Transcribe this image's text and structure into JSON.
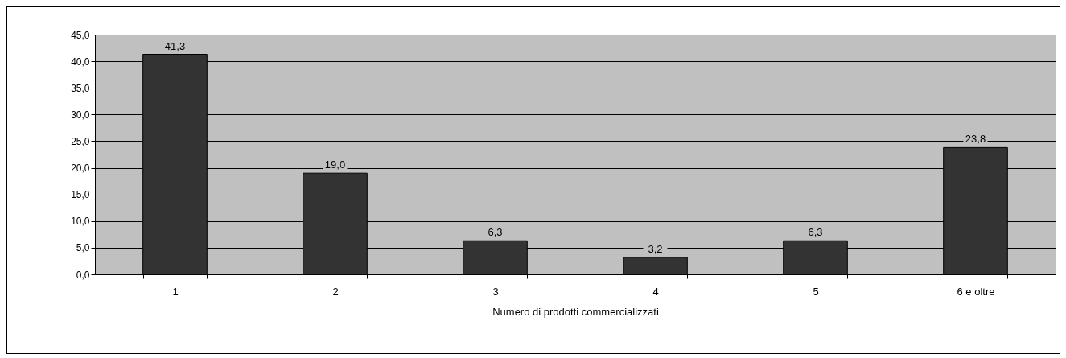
{
  "chart_data": {
    "type": "bar",
    "xlabel": "Numero di prodotti commercializzati",
    "categories": [
      "1",
      "2",
      "3",
      "4",
      "5",
      "6 e oltre"
    ],
    "values": [
      41.3,
      19.0,
      6.3,
      3.2,
      6.3,
      23.8
    ],
    "value_labels": [
      "41,3",
      "19,0",
      "6,3",
      "3,2",
      "6,3",
      "23,8"
    ],
    "color": "#333333",
    "ylim": [
      0,
      45
    ],
    "yticks": [
      {
        "value": 0,
        "label": "0,0"
      },
      {
        "value": 5,
        "label": "5,0"
      },
      {
        "value": 10,
        "label": "10,0"
      },
      {
        "value": 15,
        "label": "15,0"
      },
      {
        "value": 20,
        "label": "20,0"
      },
      {
        "value": 25,
        "label": "25,0"
      },
      {
        "value": 30,
        "label": "30,0"
      },
      {
        "value": 35,
        "label": "35,0"
      },
      {
        "value": 40,
        "label": "40,0"
      },
      {
        "value": 45,
        "label": "45,0"
      }
    ],
    "grid": true
  }
}
